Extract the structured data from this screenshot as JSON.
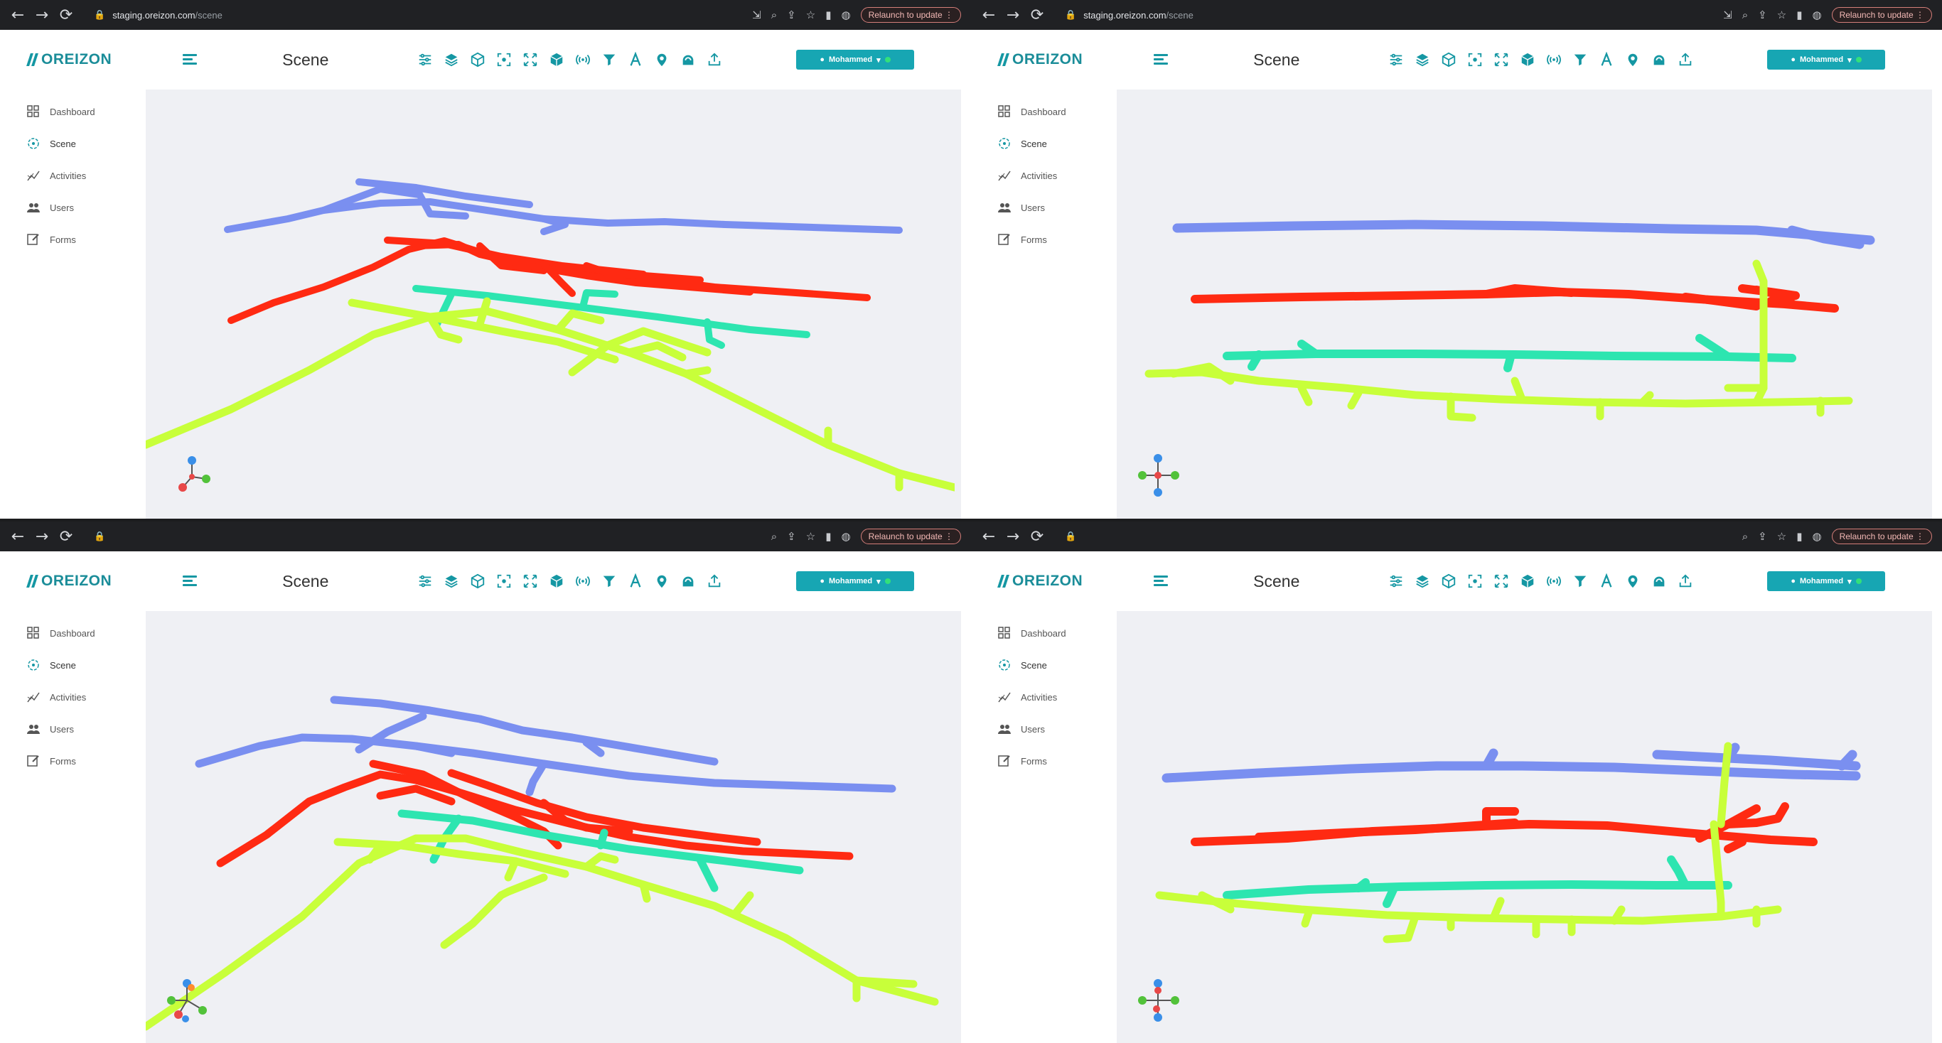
{
  "browser": {
    "url_host": "staging.oreizon.com",
    "url_path": "/scene",
    "relaunch_label": "Relaunch to update",
    "relaunch_more": "⋮"
  },
  "app": {
    "brand": "OREIZON",
    "page_title": "Scene",
    "user_name": "Mohammed",
    "sidebar": [
      {
        "label": "Dashboard",
        "icon": "dashboard-icon"
      },
      {
        "label": "Scene",
        "icon": "scene-icon"
      },
      {
        "label": "Activities",
        "icon": "activities-icon"
      },
      {
        "label": "Users",
        "icon": "users-icon"
      },
      {
        "label": "Forms",
        "icon": "forms-icon"
      }
    ],
    "toolbar_icons": [
      "sliders-icon",
      "layers-icon",
      "cube-outline-icon",
      "focus-icon",
      "expand-icon",
      "solid-cube-icon",
      "signal-icon",
      "filter-icon",
      "text-icon",
      "location-pin-icon",
      "dome-icon",
      "export-icon"
    ]
  },
  "colors": {
    "accent": "#17a6b3",
    "blue_level": "#7a8ff0",
    "red_level": "#ff2a12",
    "teal_level": "#2de5b0",
    "lime_level": "#c8ff3a",
    "scene_bg": "#eff0f4"
  },
  "panels": [
    {
      "id": "top-left",
      "show_url": true
    },
    {
      "id": "top-right",
      "show_url": true
    },
    {
      "id": "bottom-left",
      "show_url": false
    },
    {
      "id": "bottom-right",
      "show_url": false
    }
  ]
}
